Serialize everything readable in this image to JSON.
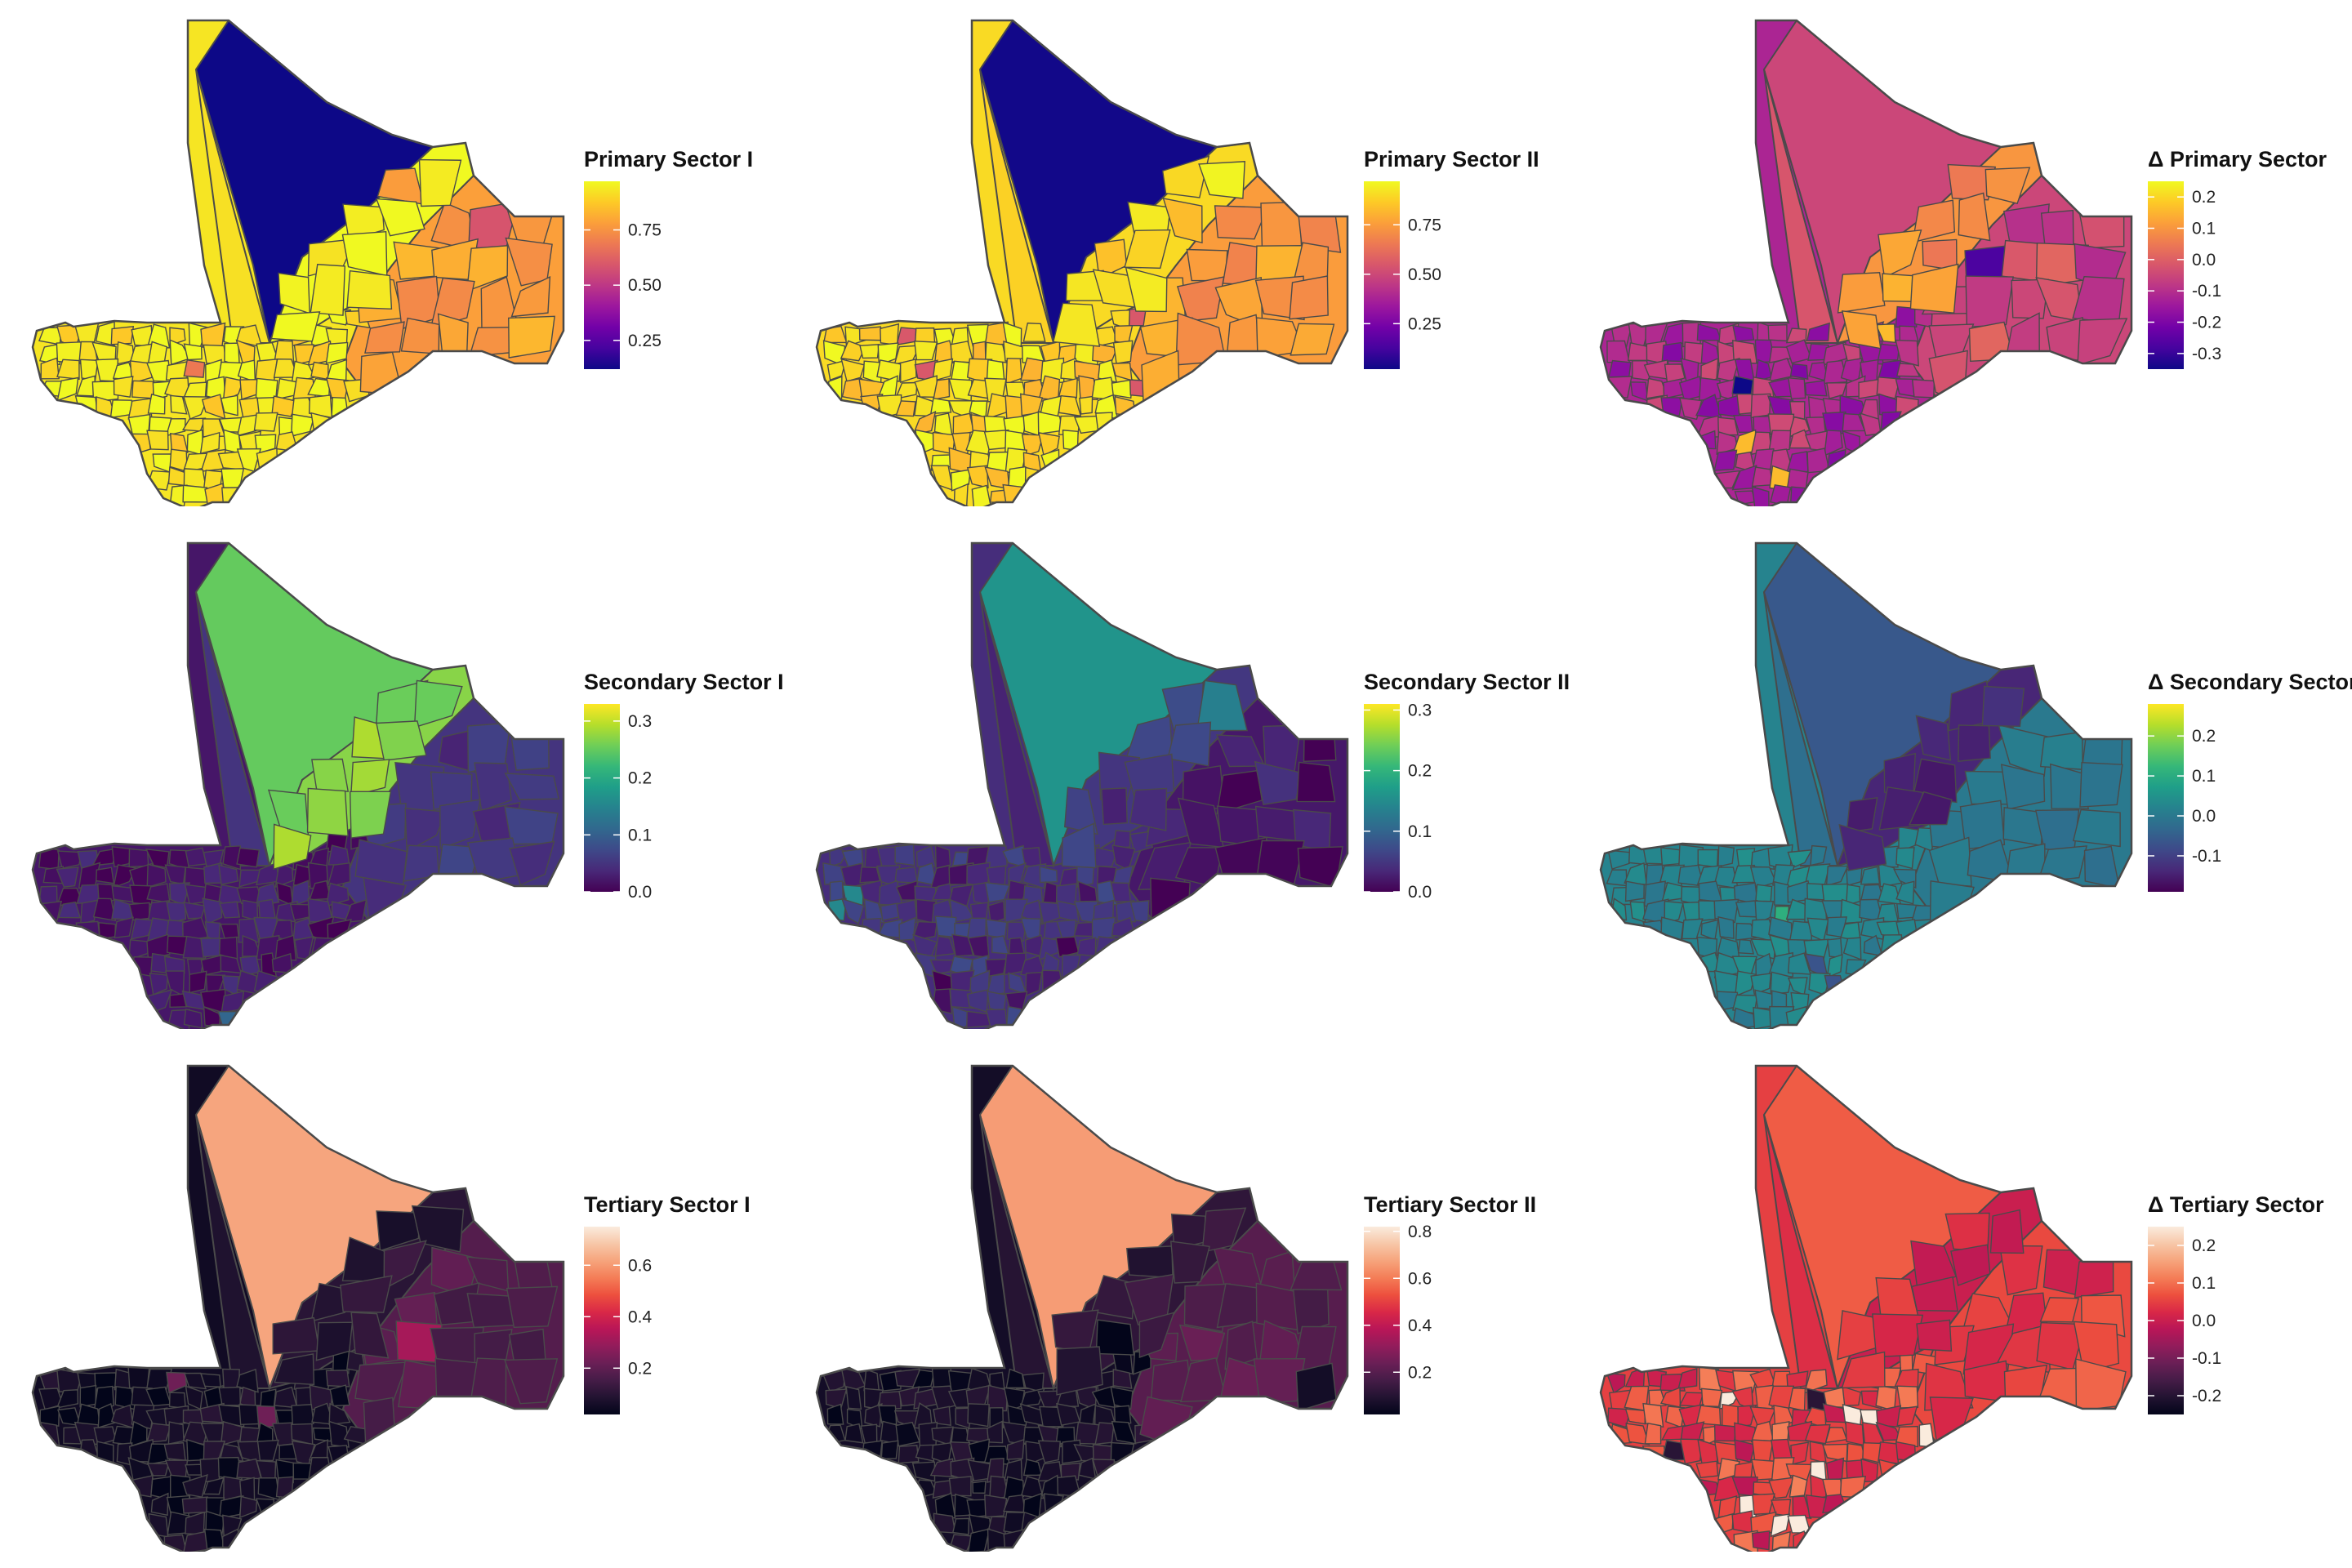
{
  "panels": [
    {
      "title": "Primary Sector I",
      "palette": "plasma",
      "range": [
        0.12,
        0.97
      ],
      "ticks": [
        0.25,
        0.5,
        0.75
      ],
      "labels": [
        "0.25",
        "0.50",
        "0.75"
      ],
      "north": 0.08,
      "triangle": 0.92,
      "east": 0.78,
      "northC": 0.97,
      "south": 0.93,
      "varAmp": 0.07,
      "seed": 1
    },
    {
      "title": "Primary Sector II",
      "palette": "plasma",
      "range": [
        0.02,
        0.97
      ],
      "ticks": [
        0.25,
        0.5,
        0.75
      ],
      "labels": [
        "0.25",
        "0.50",
        "0.75"
      ],
      "north": 0.03,
      "triangle": 0.88,
      "east": 0.75,
      "northC": 0.9,
      "south": 0.9,
      "varAmp": 0.1,
      "seed": 2
    },
    {
      "title": "Δ Primary Sector",
      "palette": "plasma",
      "range": [
        -0.35,
        0.25
      ],
      "ticks": [
        -0.3,
        -0.2,
        -0.1,
        0.0,
        0.1,
        0.2
      ],
      "labels": [
        "-0.3",
        "-0.2",
        "-0.1",
        "0.0",
        "0.1",
        "0.2"
      ],
      "north": -0.05,
      "triangle": -0.02,
      "east": -0.05,
      "northC": 0.1,
      "south": -0.12,
      "varAmp": 0.08,
      "seed": 3
    },
    {
      "title": "Secondary Sector I",
      "palette": "viridis",
      "range": [
        0.0,
        0.33
      ],
      "ticks": [
        0.0,
        0.1,
        0.2,
        0.3
      ],
      "labels": [
        "0.0",
        "0.1",
        "0.2",
        "0.3"
      ],
      "north": 0.25,
      "triangle": 0.05,
      "east": 0.05,
      "northC": 0.27,
      "south": 0.02,
      "varAmp": 0.025,
      "seed": 4
    },
    {
      "title": "Secondary Sector II",
      "palette": "viridis",
      "range": [
        0.0,
        0.31
      ],
      "ticks": [
        0.0,
        0.1,
        0.2,
        0.3
      ],
      "labels": [
        "0.0",
        "0.1",
        "0.2",
        "0.3"
      ],
      "north": 0.16,
      "triangle": 0.03,
      "east": 0.02,
      "northC": 0.05,
      "south": 0.04,
      "varAmp": 0.03,
      "seed": 5
    },
    {
      "title": "Δ Secondary Sector",
      "palette": "viridis",
      "range": [
        -0.19,
        0.28
      ],
      "ticks": [
        -0.1,
        0.0,
        0.1,
        0.2
      ],
      "labels": [
        "-0.1",
        "0.0",
        "0.1",
        "0.2"
      ],
      "north": -0.06,
      "triangle": -0.02,
      "east": 0.0,
      "northC": -0.14,
      "south": 0.02,
      "varAmp": 0.025,
      "seed": 6
    },
    {
      "title": "Tertiary Sector I",
      "palette": "rocket",
      "range": [
        0.02,
        0.75
      ],
      "ticks": [
        0.2,
        0.4,
        0.6
      ],
      "labels": [
        "0.2",
        "0.4",
        "0.6"
      ],
      "north": 0.62,
      "triangle": 0.08,
      "east": 0.18,
      "northC": 0.1,
      "south": 0.05,
      "varAmp": 0.05,
      "seed": 7
    },
    {
      "title": "Tertiary Sector II",
      "palette": "rocket",
      "range": [
        0.02,
        0.82
      ],
      "ticks": [
        0.2,
        0.4,
        0.6,
        0.8
      ],
      "labels": [
        "0.2",
        "0.4",
        "0.6",
        "0.8"
      ],
      "north": 0.66,
      "triangle": 0.1,
      "east": 0.2,
      "northC": 0.12,
      "south": 0.06,
      "varAmp": 0.05,
      "seed": 8
    },
    {
      "title": "Δ Tertiary Sector",
      "palette": "rocket",
      "range": [
        -0.25,
        0.25
      ],
      "ticks": [
        -0.2,
        -0.1,
        0.0,
        0.1,
        0.2
      ],
      "labels": [
        "-0.2",
        "-0.1",
        "0.0",
        "0.1",
        "0.2"
      ],
      "north": 0.08,
      "triangle": 0.03,
      "east": 0.06,
      "northC": 0.0,
      "south": 0.05,
      "varAmp": 0.07,
      "seed": 9
    }
  ],
  "palettes": {
    "plasma": [
      "#0d0887",
      "#46039f",
      "#7201a8",
      "#9c179e",
      "#bd3786",
      "#d8576b",
      "#ed7953",
      "#fb9f3a",
      "#fdca26",
      "#f0f921"
    ],
    "viridis": [
      "#440154",
      "#482878",
      "#3e4989",
      "#31688e",
      "#26828e",
      "#1f9e89",
      "#35b779",
      "#6ece58",
      "#b5de2b",
      "#fde725"
    ],
    "rocket": [
      "#03051a",
      "#221331",
      "#451c47",
      "#6a1f56",
      "#921c5b",
      "#b91657",
      "#d92847",
      "#ed503e",
      "#f47d57",
      "#f6a47c",
      "#f7c7a8",
      "#faebdd"
    ]
  },
  "colors": {
    "border": "#4a4a4a",
    "background": "#ffffff"
  }
}
